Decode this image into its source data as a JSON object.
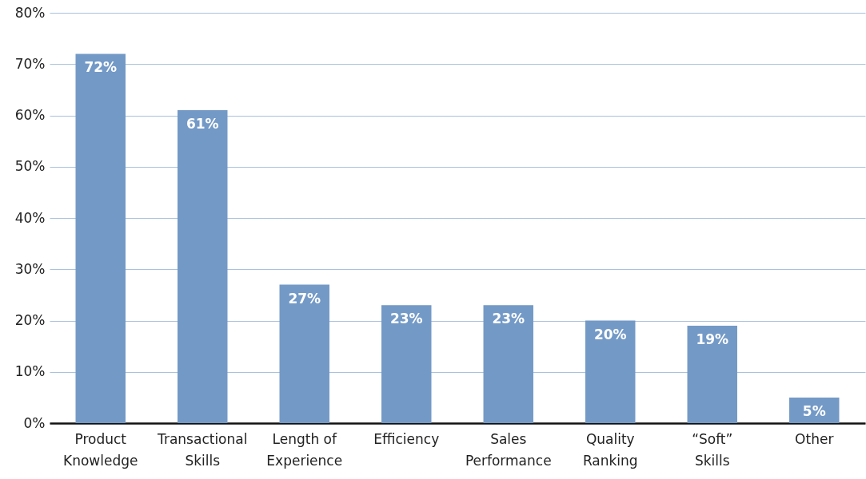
{
  "chart_data": {
    "type": "bar",
    "categories": [
      "Product Knowledge",
      "Transactional Skills",
      "Length of Experience",
      "Efficiency",
      "Sales Performance",
      "Quality Ranking",
      "“Soft” Skills",
      "Other"
    ],
    "values": [
      72,
      61,
      27,
      23,
      23,
      20,
      19,
      5
    ],
    "value_labels": [
      "72%",
      "61%",
      "27%",
      "23%",
      "23%",
      "20%",
      "19%",
      "5%"
    ],
    "color": "#7399c6",
    "ylim": [
      0,
      80
    ],
    "yticks": [
      {
        "value": 0,
        "label": "0%"
      },
      {
        "value": 10,
        "label": "10%"
      },
      {
        "value": 20,
        "label": "20%"
      },
      {
        "value": 30,
        "label": "30%"
      },
      {
        "value": 40,
        "label": "40%"
      },
      {
        "value": 50,
        "label": "50%"
      },
      {
        "value": 60,
        "label": "60%"
      },
      {
        "value": 70,
        "label": "70%"
      },
      {
        "value": 80,
        "label": "80%"
      }
    ],
    "grid": "y"
  }
}
